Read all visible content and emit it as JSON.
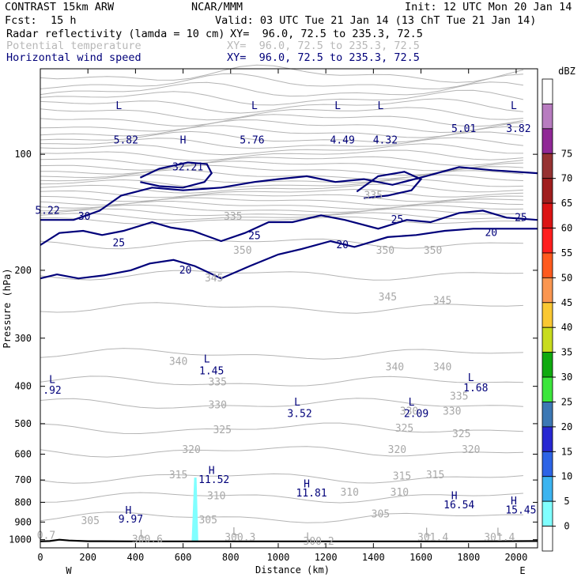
{
  "header": {
    "model": "CONTRAST 15km ARW",
    "org": "NCAR/MMM",
    "init": "Init: 12 UTC Mon 20 Jan 14",
    "fcst_label": "Fcst:",
    "fcst_value": "15 h",
    "valid": "Valid: 03 UTC Tue 21 Jan 14 (13 ChT Tue 21 Jan 14)",
    "field1_name": "Radar reflectivity (lamda = 10 cm)",
    "field1_xy": "XY=  96.0, 72.5 to 235.3, 72.5",
    "field2_name": "Potential temperature",
    "field2_xy": "XY=  96.0, 72.5 to 235.3, 72.5",
    "field3_name": "Horizontal wind speed",
    "field3_xy": "XY=  96.0, 72.5 to 235.3, 72.5"
  },
  "colors": {
    "wind": "#00007a",
    "theta": "#b4b4b4",
    "terrain": "#000000",
    "reflectivity_cell": "#80ffff"
  },
  "chart_data": {
    "type": "cross-section",
    "xlabel": "Distance (km)",
    "ylabel": "Pressure (hPa)",
    "xlim": [
      0,
      2090
    ],
    "ylim": [
      1050,
      60
    ],
    "y_scale": "log",
    "x_ticks": [
      0,
      200,
      400,
      600,
      800,
      1000,
      1200,
      1400,
      1600,
      1800,
      2000
    ],
    "y_ticks": [
      100,
      200,
      300,
      400,
      500,
      600,
      700,
      800,
      900,
      1000
    ],
    "x_end_labels": {
      "left": "W",
      "right": "E"
    },
    "colorbar": {
      "title": "dBZ",
      "levels": [
        0,
        5,
        10,
        15,
        20,
        25,
        30,
        35,
        40,
        45,
        50,
        55,
        60,
        65,
        70,
        75
      ],
      "colors": [
        "#ffffff",
        "#80ffff",
        "#3cb4f0",
        "#2d64e6",
        "#2828d2",
        "#3c78b4",
        "#3ce63c",
        "#0faa0f",
        "#c8dc1e",
        "#fac832",
        "#fa9650",
        "#ff5a1e",
        "#ff1e1e",
        "#dc1414",
        "#a01e1e",
        "#963232",
        "#902896",
        "#b87cc0",
        "#ffffff"
      ]
    },
    "theta_labels": [
      {
        "x": 810,
        "p": 145,
        "text": "335"
      },
      {
        "x": 1400,
        "p": 128,
        "text": "335"
      },
      {
        "x": 850,
        "p": 178,
        "text": "350"
      },
      {
        "x": 1450,
        "p": 178,
        "text": "350"
      },
      {
        "x": 1650,
        "p": 178,
        "text": "350"
      },
      {
        "x": 730,
        "p": 210,
        "text": "345"
      },
      {
        "x": 1460,
        "p": 235,
        "text": "345"
      },
      {
        "x": 1690,
        "p": 240,
        "text": "345"
      },
      {
        "x": 580,
        "p": 345,
        "text": "340"
      },
      {
        "x": 1490,
        "p": 357,
        "text": "340"
      },
      {
        "x": 1690,
        "p": 357,
        "text": "340"
      },
      {
        "x": 745,
        "p": 390,
        "text": "335"
      },
      {
        "x": 1760,
        "p": 425,
        "text": "335"
      },
      {
        "x": 745,
        "p": 448,
        "text": "330"
      },
      {
        "x": 1550,
        "p": 465,
        "text": "330"
      },
      {
        "x": 1730,
        "p": 465,
        "text": "330"
      },
      {
        "x": 765,
        "p": 520,
        "text": "325"
      },
      {
        "x": 1530,
        "p": 515,
        "text": "325"
      },
      {
        "x": 1770,
        "p": 532,
        "text": "325"
      },
      {
        "x": 635,
        "p": 585,
        "text": "320"
      },
      {
        "x": 1500,
        "p": 585,
        "text": "320"
      },
      {
        "x": 1810,
        "p": 585,
        "text": "320"
      },
      {
        "x": 580,
        "p": 680,
        "text": "315"
      },
      {
        "x": 1520,
        "p": 685,
        "text": "315"
      },
      {
        "x": 1660,
        "p": 680,
        "text": "315"
      },
      {
        "x": 740,
        "p": 770,
        "text": "310"
      },
      {
        "x": 1300,
        "p": 755,
        "text": "310"
      },
      {
        "x": 1510,
        "p": 755,
        "text": "310"
      },
      {
        "x": 210,
        "p": 895,
        "text": "305"
      },
      {
        "x": 705,
        "p": 890,
        "text": "305"
      },
      {
        "x": 1430,
        "p": 860,
        "text": "305"
      },
      {
        "x": 25,
        "p": 975,
        "text": "0.7"
      },
      {
        "x": 450,
        "p": 1000,
        "text": "300.6"
      },
      {
        "x": 840,
        "p": 988,
        "text": "300.3"
      },
      {
        "x": 1170,
        "p": 1010,
        "text": "300.2"
      },
      {
        "x": 1650,
        "p": 988,
        "text": "301.4"
      },
      {
        "x": 1930,
        "p": 988,
        "text": "301.4"
      },
      {
        "x": 1630,
        "p": 957,
        "text": "L"
      },
      {
        "x": 1930,
        "p": 957,
        "text": "L"
      },
      {
        "x": 430,
        "p": 970,
        "text": "L"
      },
      {
        "x": 820,
        "p": 955,
        "text": "L"
      },
      {
        "x": 1130,
        "p": 985,
        "text": "L"
      }
    ],
    "wind_labels": [
      {
        "x": 330,
        "p": 75,
        "text": "L"
      },
      {
        "x": 360,
        "p": 92,
        "text": "5.82"
      },
      {
        "x": 600,
        "p": 92,
        "text": "H"
      },
      {
        "x": 620,
        "p": 108,
        "text": "32.21"
      },
      {
        "x": 900,
        "p": 75,
        "text": "L"
      },
      {
        "x": 890,
        "p": 92,
        "text": "5.76"
      },
      {
        "x": 1250,
        "p": 75,
        "text": "L"
      },
      {
        "x": 1270,
        "p": 92,
        "text": "4.49"
      },
      {
        "x": 1430,
        "p": 75,
        "text": "L"
      },
      {
        "x": 1450,
        "p": 92,
        "text": "4.32"
      },
      {
        "x": 1780,
        "p": 86,
        "text": "5.01"
      },
      {
        "x": 1990,
        "p": 75,
        "text": "L"
      },
      {
        "x": 2010,
        "p": 86,
        "text": "3.82"
      },
      {
        "x": 30,
        "p": 140,
        "text": "5.22"
      },
      {
        "x": 185,
        "p": 145,
        "text": "30"
      },
      {
        "x": 330,
        "p": 170,
        "text": "25"
      },
      {
        "x": 900,
        "p": 163,
        "text": "25"
      },
      {
        "x": 1500,
        "p": 148,
        "text": "25"
      },
      {
        "x": 2020,
        "p": 146,
        "text": "25"
      },
      {
        "x": 1270,
        "p": 172,
        "text": "20"
      },
      {
        "x": 1895,
        "p": 160,
        "text": "20"
      },
      {
        "x": 610,
        "p": 200,
        "text": "20"
      },
      {
        "x": 50,
        "p": 385,
        "text": "L"
      },
      {
        "x": 50,
        "p": 410,
        "text": ".92"
      },
      {
        "x": 700,
        "p": 340,
        "text": "L"
      },
      {
        "x": 720,
        "p": 365,
        "text": "1.45"
      },
      {
        "x": 1810,
        "p": 380,
        "text": "L"
      },
      {
        "x": 1830,
        "p": 404,
        "text": "1.68"
      },
      {
        "x": 1080,
        "p": 440,
        "text": "L"
      },
      {
        "x": 1090,
        "p": 472,
        "text": "3.52"
      },
      {
        "x": 1560,
        "p": 440,
        "text": "L"
      },
      {
        "x": 1580,
        "p": 472,
        "text": "2.09"
      },
      {
        "x": 720,
        "p": 662,
        "text": "H"
      },
      {
        "x": 730,
        "p": 700,
        "text": "11.52"
      },
      {
        "x": 1120,
        "p": 718,
        "text": "H"
      },
      {
        "x": 1140,
        "p": 758,
        "text": "11.81"
      },
      {
        "x": 1740,
        "p": 770,
        "text": "H"
      },
      {
        "x": 1760,
        "p": 813,
        "text": "16.54"
      },
      {
        "x": 1990,
        "p": 795,
        "text": "H"
      },
      {
        "x": 2020,
        "p": 838,
        "text": "15.45"
      },
      {
        "x": 370,
        "p": 840,
        "text": "H"
      },
      {
        "x": 380,
        "p": 885,
        "text": "9.97"
      }
    ],
    "wind_contours": [
      {
        "level": 30,
        "points": [
          [
            0,
            148
          ],
          [
            140,
            148
          ],
          [
            250,
            140
          ],
          [
            340,
            128
          ],
          [
            470,
            122
          ],
          [
            600,
            124
          ],
          [
            760,
            122
          ],
          [
            900,
            118
          ],
          [
            1000,
            116
          ],
          [
            1120,
            114
          ],
          [
            1240,
            118
          ],
          [
            1360,
            116
          ],
          [
            1480,
            120
          ],
          [
            1620,
            114
          ],
          [
            1760,
            108
          ],
          [
            1900,
            110
          ],
          [
            2090,
            112
          ]
        ]
      },
      {
        "level": 25,
        "points": [
          [
            0,
            172
          ],
          [
            80,
            160
          ],
          [
            180,
            158
          ],
          [
            260,
            162
          ],
          [
            350,
            158
          ],
          [
            470,
            150
          ],
          [
            550,
            155
          ],
          [
            640,
            158
          ],
          [
            760,
            168
          ],
          [
            860,
            160
          ],
          [
            960,
            150
          ],
          [
            1060,
            150
          ],
          [
            1180,
            144
          ],
          [
            1280,
            148
          ],
          [
            1420,
            156
          ],
          [
            1540,
            148
          ],
          [
            1640,
            150
          ],
          [
            1760,
            142
          ],
          [
            1860,
            140
          ],
          [
            1960,
            146
          ],
          [
            2090,
            148
          ]
        ]
      },
      {
        "level": 20,
        "points": [
          [
            0,
            210
          ],
          [
            70,
            205
          ],
          [
            160,
            210
          ],
          [
            270,
            206
          ],
          [
            380,
            200
          ],
          [
            460,
            192
          ],
          [
            560,
            188
          ],
          [
            650,
            195
          ],
          [
            760,
            210
          ],
          [
            880,
            195
          ],
          [
            1000,
            182
          ],
          [
            1100,
            176
          ],
          [
            1220,
            168
          ],
          [
            1320,
            174
          ],
          [
            1460,
            164
          ],
          [
            1580,
            162
          ],
          [
            1700,
            158
          ],
          [
            1820,
            156
          ],
          [
            1940,
            156
          ],
          [
            2090,
            156
          ]
        ]
      }
    ],
    "jet_closed": [
      {
        "level": 30,
        "points": [
          [
            420,
            115
          ],
          [
            500,
            109
          ],
          [
            620,
            105
          ],
          [
            700,
            106
          ],
          [
            720,
            112
          ],
          [
            690,
            118
          ],
          [
            600,
            122
          ],
          [
            500,
            121
          ],
          [
            420,
            118
          ]
        ]
      },
      {
        "level": 30,
        "points": [
          [
            1330,
            125
          ],
          [
            1420,
            114
          ],
          [
            1530,
            111
          ],
          [
            1600,
            116
          ],
          [
            1560,
            124
          ],
          [
            1460,
            128
          ],
          [
            1360,
            130
          ]
        ]
      }
    ],
    "terrain_surface_p": [
      [
        0,
        1010
      ],
      [
        40,
        1008
      ],
      [
        80,
        1000
      ],
      [
        120,
        1005
      ],
      [
        200,
        1009
      ],
      [
        400,
        1010
      ],
      [
        600,
        1010
      ],
      [
        800,
        1010
      ],
      [
        1000,
        1010
      ],
      [
        1400,
        1010
      ],
      [
        1800,
        1010
      ],
      [
        2090,
        1008
      ]
    ],
    "reflectivity_cell": {
      "x_from": 636,
      "x_to": 664,
      "p_top": 690,
      "p_bottom": 1010,
      "dbz": 5
    }
  }
}
